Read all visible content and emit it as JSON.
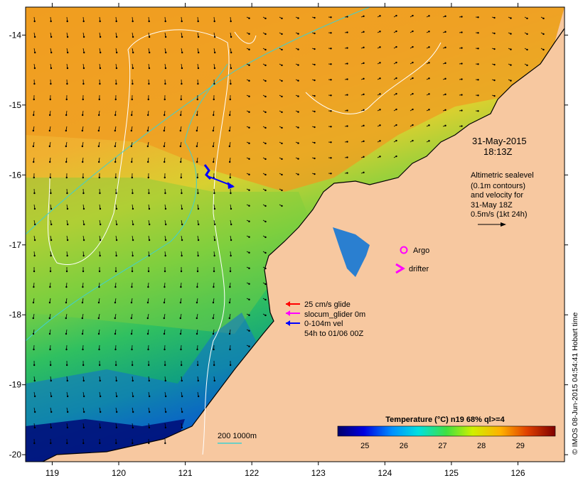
{
  "map": {
    "lon_range": [
      118.6,
      126.7
    ],
    "lat_range": [
      -20.1,
      -13.6
    ],
    "x_ticks": [
      "119",
      "120",
      "121",
      "122",
      "123",
      "124",
      "125",
      "126"
    ],
    "y_ticks": [
      "-14",
      "-15",
      "-16",
      "-17",
      "-18",
      "-19",
      "-20"
    ]
  },
  "timestamp": {
    "date": "31-May-2015",
    "time": "18:13Z"
  },
  "altimetry_note": {
    "line1": "Altimetric sealevel",
    "line2": "(0.1m contours)",
    "line3": "and velocity for",
    "line4": "31-May 18Z",
    "line5": "0.5m/s (1kt 24h)"
  },
  "markers": {
    "argo": "Argo",
    "drifter": "drifter"
  },
  "glider_legend": {
    "line1": "25 cm/s glide",
    "line2": "slocum_glider 0m",
    "line3": "0-104m vel",
    "line4": "54h to 01/06 00Z"
  },
  "bathymetry_legend": {
    "label": "200  1000m"
  },
  "colorbar": {
    "title": "Temperature (°C) n19 68% ql>=4",
    "ticks": [
      "25",
      "26",
      "27",
      "28",
      "29"
    ],
    "range": [
      24.3,
      29.9
    ]
  },
  "credit": "© IMOS 08-Jun-2015 04:54:41 Hobart time",
  "colors": {
    "land": "#f7c8a0",
    "warm": "#f0a828",
    "mid": "#d8d830",
    "cool": "#40c060",
    "cold": "#0020a0",
    "glider_red": "#ff0000",
    "glider_magenta": "#ff00ff",
    "glider_blue": "#0000ff",
    "contour_white": "#ffffff",
    "bathy_cyan": "#40d0d0"
  }
}
